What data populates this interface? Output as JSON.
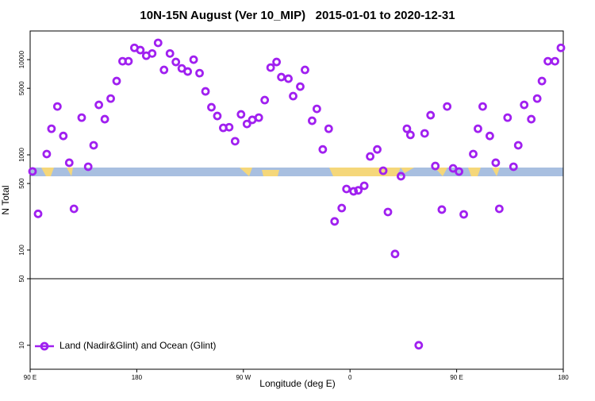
{
  "chart_data": {
    "type": "scatter",
    "title": "10N-15N August (Ver 10_MIP)   2015-01-01 to 2020-12-31",
    "xlabel": "Longitude (deg E)",
    "ylabel": "N Total",
    "log_y": true,
    "xlim": [
      90,
      540
    ],
    "ylim": [
      5.6,
      20000
    ],
    "xticks": [
      {
        "value": 90,
        "label": "90 E"
      },
      {
        "value": 180,
        "label": "180"
      },
      {
        "value": 270,
        "label": "90 W"
      },
      {
        "value": 360,
        "label": "0"
      },
      {
        "value": 450,
        "label": "90 E"
      },
      {
        "value": 540,
        "label": "180"
      }
    ],
    "yticks": [
      10,
      50,
      100,
      500,
      1000,
      5000,
      10000
    ],
    "reference_line": 50,
    "legend_position": "lower left",
    "series": [
      {
        "name": "Land (Nadir&Glint) and Ocean (Glint)",
        "color": "#a020f0",
        "x": [
          92,
          96.7,
          104,
          108,
          113,
          118,
          123,
          127,
          133.5,
          139,
          143.6,
          148,
          153,
          158,
          163,
          168,
          173,
          178,
          183,
          188,
          193,
          198,
          203,
          208,
          213,
          218,
          223,
          228,
          233,
          238,
          243,
          248,
          253,
          258,
          263,
          268,
          273,
          277.5,
          283,
          288,
          293,
          298,
          302,
          308,
          312,
          318,
          322,
          328,
          332,
          337,
          342,
          347,
          353,
          357,
          363,
          367,
          372,
          377,
          383,
          388,
          392,
          398,
          403,
          408,
          411,
          418,
          423,
          428,
          432,
          437.5,
          442,
          447,
          452,
          456,
          464,
          468,
          472,
          478,
          483,
          486,
          493,
          498,
          502,
          507,
          513,
          518,
          522,
          527,
          533,
          538
        ],
        "values": [
          670,
          240,
          1020,
          1880,
          3220,
          1580,
          826,
          271,
          2460,
          750,
          1260,
          3350,
          2370,
          3900,
          5960,
          9620,
          9620,
          13300,
          12600,
          11000,
          11600,
          15000,
          7800,
          11600,
          9450,
          8090,
          7500,
          10000,
          7210,
          4640,
          3160,
          2560,
          1920,
          1950,
          1390,
          2660,
          2110,
          2330,
          2460,
          3760,
          8250,
          9450,
          6560,
          6310,
          4140,
          5210,
          7800,
          2280,
          3040,
          1140,
          1880,
          200,
          276,
          438,
          414,
          424,
          473,
          962,
          1140,
          681,
          251,
          91,
          596,
          1880,
          1620,
          10,
          1680,
          2610,
          764,
          266,
          3220,
          721,
          668,
          237,
          1020,
          1880,
          3220,
          1580,
          826,
          271,
          2460,
          750,
          1260,
          3350,
          2370,
          3900,
          5960,
          9620,
          9620,
          13300
        ]
      }
    ]
  }
}
